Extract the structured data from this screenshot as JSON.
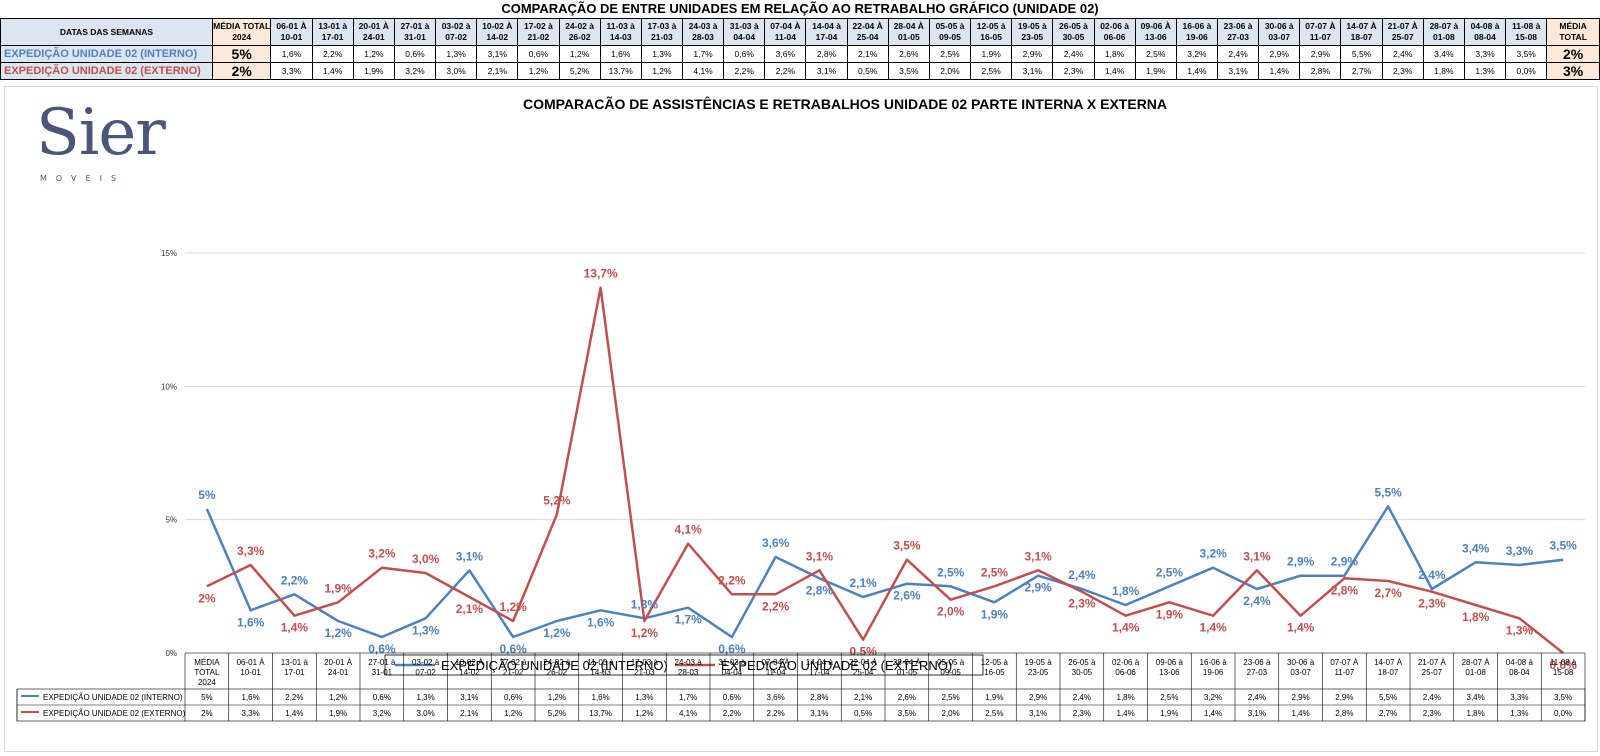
{
  "header": {
    "title": "COMPARAÇÃO DE ENTRE UNIDADES EM RELAÇÃO AO RETRABALHO GRÁFICO (UNIDADE 02)",
    "dates_label": "DATAS DAS SEMANAS",
    "avg_label_start": "MÉDIA TOTAL 2024",
    "avg_label_end": "MÉDIA TOTAL"
  },
  "summary_table": {
    "weeks": [
      "06-01 À 10-01",
      "13-01 à 17-01",
      "20-01 À 24-01",
      "27-01 à 31-01",
      "03-02 à 07-02",
      "10-02 À 14-02",
      "17-02 à 21-02",
      "24-02 à 26-02",
      "11-03 à 14-03",
      "17-03 à 21-03",
      "24-03 à 28-03",
      "31-03 à 04-04",
      "07-04 À 11-04",
      "14-04 à 17-04",
      "22-04 À 25-04",
      "28-04 À 01-05",
      "05-05 à 09-05",
      "12-05 à 16-05",
      "19-05 à 23-05",
      "26-05 à 30-05",
      "02-06 à 06-06",
      "09-06 À 13-06",
      "16-06 à 19-06",
      "23-06 à 27-03",
      "30-06 à 03-07",
      "07-07 À 11-07",
      "14-07 À 18-07",
      "21-07 À 25-07",
      "28-07 à 01-08",
      "04-08 à 08-04",
      "11-08 à 15-08"
    ],
    "rows": [
      {
        "label": "EXPEDIÇÃO UNIDADE 02 (INTERNO)",
        "avg": "5%",
        "values": [
          "1,6%",
          "2,2%",
          "1,2%",
          "0,6%",
          "1,3%",
          "3,1%",
          "0,6%",
          "1,2%",
          "1,6%",
          "1,3%",
          "1,7%",
          "0,6%",
          "3,6%",
          "2,8%",
          "2,1%",
          "2,6%",
          "2,5%",
          "1,9%",
          "2,9%",
          "2,4%",
          "1,8%",
          "2,5%",
          "3,2%",
          "2,4%",
          "2,9%",
          "2,9%",
          "5,5%",
          "2,4%",
          "3,4%",
          "3,3%",
          "3,5%"
        ],
        "avg_end": "2%"
      },
      {
        "label": "EXPEDIÇÃO UNIDADE 02 (EXTERNO)",
        "avg": "2%",
        "values": [
          "3,3%",
          "1,4%",
          "1,9%",
          "3,2%",
          "3,0%",
          "2,1%",
          "1,2%",
          "5,2%",
          "13,7%",
          "1,2%",
          "4,1%",
          "2,2%",
          "2,2%",
          "3,1%",
          "0,5%",
          "3,5%",
          "2,0%",
          "2,5%",
          "3,1%",
          "2,3%",
          "1,4%",
          "1,9%",
          "1,4%",
          "3,1%",
          "1,4%",
          "2,8%",
          "2,7%",
          "2,3%",
          "1,8%",
          "1,3%",
          "0,0%"
        ],
        "avg_end": "3%"
      }
    ]
  },
  "logo": {
    "word": "Sier",
    "sub": "MOVEIS"
  },
  "chart_data": {
    "type": "line",
    "title": "COMPARACÃO DE ASSISTÊNCIAS E RETRABALHOS UNIDADE 02 PARTE INTERNA X EXTERNA",
    "categories": [
      "MÉDIA TOTAL 2024",
      "06-01 À 10-01",
      "13-01 à 17-01",
      "20-01 À 24-01",
      "27-01 à 31-01",
      "03-02 à 07-02",
      "10-02 À 14-02",
      "17-02 à 21-02",
      "24-02 à 26-02",
      "11-03 à 14-03",
      "17-03 à 21-03",
      "24-03 à 28-03",
      "31-03 à 04-04",
      "07-04 À 11-04",
      "14-04 à 17-04",
      "22-04 À 25-04",
      "28-04 À 01-05",
      "05-05 à 09-05",
      "12-05 à 16-05",
      "19-05 à 23-05",
      "26-05 à 30-05",
      "02-06 à 06-06",
      "09-06 à 13-06",
      "16-06 à 19-06",
      "23-06 à 27-03",
      "30-06 à 03-07",
      "07-07 À 11-07",
      "14-07 À 18-07",
      "21-07 À 25-07",
      "28-07 À 01-08",
      "04-08 à 08-04",
      "11-08 à 15-08"
    ],
    "series": [
      {
        "name": "EXPEDIÇÃO UNIDADE 02 (INTERNO)",
        "color": "#4f81bd",
        "values": [
          5.4,
          1.6,
          2.2,
          1.2,
          0.6,
          1.3,
          3.1,
          0.6,
          1.2,
          1.6,
          1.3,
          1.7,
          0.6,
          3.6,
          2.8,
          2.1,
          2.6,
          2.5,
          1.9,
          2.9,
          2.4,
          1.8,
          2.5,
          3.2,
          2.4,
          2.9,
          2.9,
          5.5,
          2.4,
          3.4,
          3.3,
          3.5
        ],
        "labels": [
          "5%",
          "1,6%",
          "2,2%",
          "1,2%",
          "0,6%",
          "1,3%",
          "3,1%",
          "0,6%",
          "1,2%",
          "1,6%",
          "1,3%",
          "1,7%",
          "0,6%",
          "3,6%",
          "2,8%",
          "2,1%",
          "2,6%",
          "2,5%",
          "1,9%",
          "2,9%",
          "2,4%",
          "1,8%",
          "2,5%",
          "3,2%",
          "2,4%",
          "2,9%",
          "2,9%",
          "5,5%",
          "2,4%",
          "3,4%",
          "3,3%",
          "3,5%"
        ],
        "table_values": [
          "5%",
          "1,6%",
          "2,2%",
          "1,2%",
          "0,6%",
          "1,3%",
          "3,1%",
          "0,6%",
          "1,2%",
          "1,6%",
          "1,3%",
          "1,7%",
          "0,6%",
          "3,6%",
          "2,8%",
          "2,1%",
          "2,6%",
          "2,5%",
          "1,9%",
          "2,9%",
          "2,4%",
          "1,8%",
          "2,5%",
          "3,2%",
          "2,4%",
          "2,9%",
          "2,9%",
          "5,5%",
          "2,4%",
          "3,4%",
          "3,3%",
          "3,5%"
        ]
      },
      {
        "name": "EXPEDIÇÃO UNIDADE 02 (EXTERNO)",
        "color": "#c0504d",
        "values": [
          2.5,
          3.3,
          1.4,
          1.9,
          3.2,
          3.0,
          2.1,
          1.2,
          5.2,
          13.7,
          1.2,
          4.1,
          2.2,
          2.2,
          3.1,
          0.5,
          3.5,
          2.0,
          2.5,
          3.1,
          2.3,
          1.4,
          1.9,
          1.4,
          3.1,
          1.4,
          2.8,
          2.7,
          2.3,
          1.8,
          1.3,
          0.0
        ],
        "labels": [
          "2%",
          "3,3%",
          "1,4%",
          "1,9%",
          "3,2%",
          "3,0%",
          "2,1%",
          "1,2%",
          "5,2%",
          "13,7%",
          "1,2%",
          "4,1%",
          "2,2%",
          "2,2%",
          "3,1%",
          "0,5%",
          "3,5%",
          "2,0%",
          "2,5%",
          "3,1%",
          "2,3%",
          "1,4%",
          "1,9%",
          "1,4%",
          "3,1%",
          "1,4%",
          "2,8%",
          "2,7%",
          "2,3%",
          "1,8%",
          "1,3%",
          "0,0%"
        ],
        "table_values": [
          "2%",
          "3,3%",
          "1,4%",
          "1,9%",
          "3,2%",
          "3,0%",
          "2,1%",
          "1,2%",
          "5,2%",
          "13,7%",
          "1,2%",
          "4,1%",
          "2,2%",
          "2,2%",
          "3,1%",
          "0,5%",
          "3,5%",
          "2,0%",
          "2,5%",
          "3,1%",
          "2,3%",
          "1,4%",
          "1,9%",
          "1,4%",
          "3,1%",
          "1,4%",
          "2,8%",
          "2,7%",
          "2,3%",
          "1,8%",
          "1,3%",
          "0,0%"
        ]
      }
    ],
    "y_ticks": [
      "0%",
      "5%",
      "10%",
      "15%"
    ],
    "ylim": [
      0,
      15
    ],
    "grid": true,
    "legend_position": "bottom"
  }
}
